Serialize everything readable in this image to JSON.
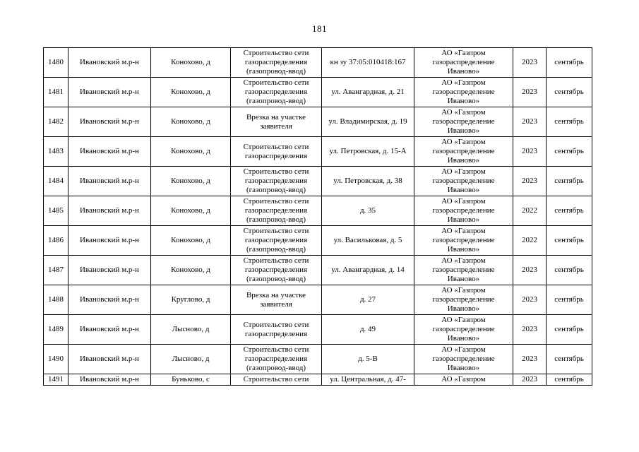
{
  "page": {
    "number": "181"
  },
  "table": {
    "column_keys": [
      "num",
      "district",
      "settlement",
      "work",
      "address",
      "org",
      "year",
      "month"
    ],
    "rows": [
      {
        "num": "1480",
        "district": "Ивановский м.р-н",
        "settlement": "Конохово, д",
        "work": "Строительство сети газораспределения (газопровод-ввод)",
        "address": "кн зу 37:05:010418:167",
        "org": "АО «Газпром газораспределение Иваново»",
        "year": "2023",
        "month": "сентябрь"
      },
      {
        "num": "1481",
        "district": "Ивановский м.р-н",
        "settlement": "Конохово, д",
        "work": "Строительство сети газораспределения (газопровод-ввод)",
        "address": "ул. Авангардная, д. 21",
        "org": "АО «Газпром газораспределение Иваново»",
        "year": "2023",
        "month": "сентябрь"
      },
      {
        "num": "1482",
        "district": "Ивановский м.р-н",
        "settlement": "Конохово, д",
        "work": "Врезка на участке заявителя",
        "address": "ул. Владимирская, д. 19",
        "org": "АО «Газпром газораспределение Иваново»",
        "year": "2023",
        "month": "сентябрь"
      },
      {
        "num": "1483",
        "district": "Ивановский м.р-н",
        "settlement": "Конохово, д",
        "work": "Строительство сети газораспределения",
        "address": "ул. Петровская, д. 15-А",
        "org": "АО «Газпром газораспределение Иваново»",
        "year": "2023",
        "month": "сентябрь"
      },
      {
        "num": "1484",
        "district": "Ивановский м.р-н",
        "settlement": "Конохово, д",
        "work": "Строительство сети газораспределения (газопровод-ввод)",
        "address": "ул. Петровская, д. 38",
        "org": "АО «Газпром газораспределение Иваново»",
        "year": "2023",
        "month": "сентябрь"
      },
      {
        "num": "1485",
        "district": "Ивановский м.р-н",
        "settlement": "Конохово, д",
        "work": "Строительство сети газораспределения (газопровод-ввод)",
        "address": "д. 35",
        "org": "АО «Газпром газораспределение Иваново»",
        "year": "2022",
        "month": "сентябрь"
      },
      {
        "num": "1486",
        "district": "Ивановский м.р-н",
        "settlement": "Конохово, д",
        "work": "Строительство сети газораспределения (газопровод-ввод)",
        "address": "ул. Васильковая, д. 5",
        "org": "АО «Газпром газораспределение Иваново»",
        "year": "2022",
        "month": "сентябрь"
      },
      {
        "num": "1487",
        "district": "Ивановский м.р-н",
        "settlement": "Конохово, д",
        "work": "Строительство сети газораспределения (газопровод-ввод)",
        "address": "ул. Авангардная, д. 14",
        "org": "АО «Газпром газораспределение Иваново»",
        "year": "2023",
        "month": "сентябрь"
      },
      {
        "num": "1488",
        "district": "Ивановский м.р-н",
        "settlement": "Круглово, д",
        "work": "Врезка на участке заявителя",
        "address": "д. 27",
        "org": "АО «Газпром газораспределение Иваново»",
        "year": "2023",
        "month": "сентябрь"
      },
      {
        "num": "1489",
        "district": "Ивановский м.р-н",
        "settlement": "Лысново, д",
        "work": "Строительство сети газораспределения",
        "address": "д. 49",
        "org": "АО «Газпром газораспределение Иваново»",
        "year": "2023",
        "month": "сентябрь"
      },
      {
        "num": "1490",
        "district": "Ивановский м.р-н",
        "settlement": "Лысново, д",
        "work": "Строительство сети газораспределения (газопровод-ввод)",
        "address": "д. 5-В",
        "org": "АО «Газпром газораспределение Иваново»",
        "year": "2023",
        "month": "сентябрь"
      },
      {
        "num": "1491",
        "district": "Ивановский м.р-н",
        "settlement": "Буньково, с",
        "work": "Строительство сети",
        "address": "ул. Центральная, д. 47-",
        "org": "АО «Газпром",
        "year": "2023",
        "month": "сентябрь"
      }
    ]
  }
}
